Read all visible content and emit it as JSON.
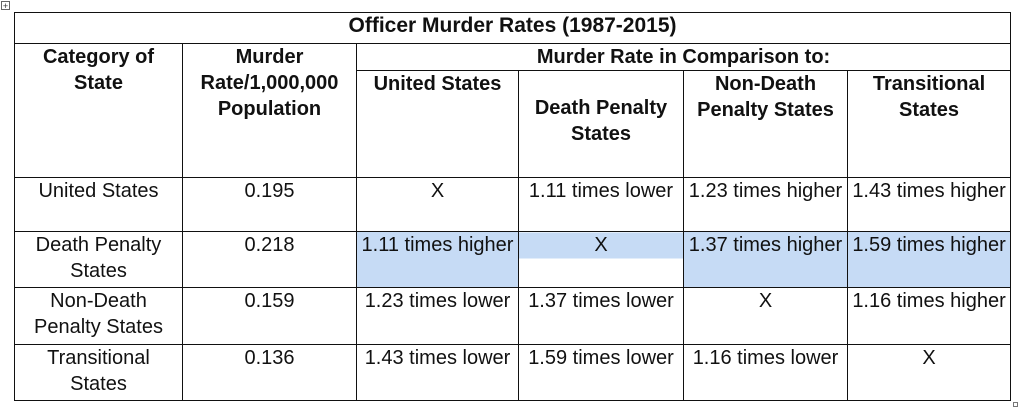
{
  "table": {
    "title": "Officer Murder Rates (1987-2015)",
    "header": {
      "category": "Category of State",
      "rate": "Murder Rate/1,000,000 Population",
      "comparison": "Murder Rate in Comparison to:",
      "columns": [
        "United States",
        "Death Penalty States",
        "Non-Death Penalty States",
        "Transitional States"
      ]
    },
    "rows": [
      {
        "category": "United States",
        "rate": "0.195",
        "comparisons": [
          "X",
          "1.11 times lower",
          "1.23 times higher",
          "1.43 times higher"
        ]
      },
      {
        "category": "Death Penalty States",
        "rate": "0.218",
        "comparisons": [
          "1.11 times higher",
          "X",
          "1.37 times higher",
          "1.59 times higher"
        ]
      },
      {
        "category": "Non-Death Penalty States",
        "rate": "0.159",
        "comparisons": [
          "1.23 times lower",
          "1.37 times lower",
          "X",
          "1.16 times higher"
        ]
      },
      {
        "category": "Transitional States",
        "rate": "0.136",
        "comparisons": [
          "1.43 times lower",
          "1.59 times lower",
          "1.16 times lower",
          "X"
        ]
      }
    ],
    "highlight_color": "#c6dbf5"
  }
}
